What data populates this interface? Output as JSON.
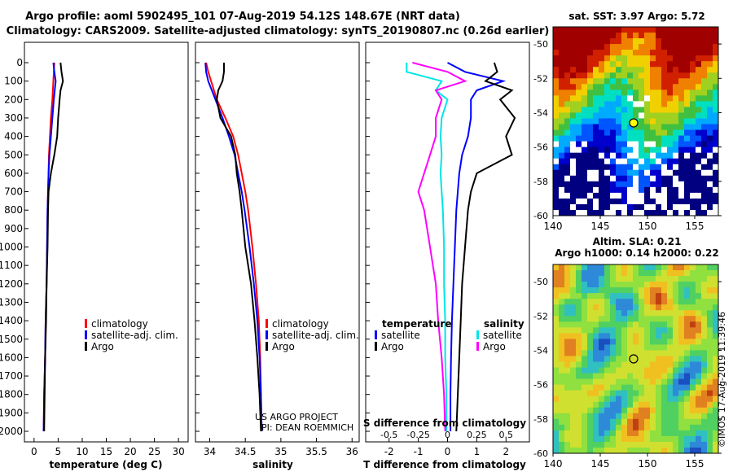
{
  "header": {
    "title_line1": "Argo profile: aoml 5902495_101 07-Aug-2019 54.12S 148.67E (NRT data)",
    "title_line2": "Climatology: CARS2009. Satellite-adjusted climatology: synTS_20190807.nc (0.26d earlier)"
  },
  "depth_ticks": [
    "0",
    "100",
    "200",
    "300",
    "400",
    "500",
    "600",
    "700",
    "800",
    "900",
    "1000",
    "1100",
    "1200",
    "1300",
    "1400",
    "1500",
    "1600",
    "1700",
    "1800",
    "1900",
    "2000"
  ],
  "credits": {
    "line1": "US ARGO PROJECT",
    "line2": "PI: DEAN ROEMMICH"
  },
  "imos_stamp": "©IMOS 17-Aug-2019 11:39:46",
  "colors": {
    "climatology": "#ff0000",
    "satellite": "#0000ff",
    "argo": "#000000",
    "satellite_salinity": "#00e5e5",
    "argo_salinity": "#ff00ff"
  },
  "panels": {
    "temperature": {
      "xlabel": "temperature (deg C)",
      "xticks": [
        "0",
        "5",
        "10",
        "15",
        "20",
        "25",
        "30"
      ],
      "legend": [
        "climatology",
        "satellite-adj. clim.",
        "Argo"
      ]
    },
    "salinity": {
      "xlabel": "salinity",
      "xticks": [
        "34",
        "34.5",
        "35",
        "35.5",
        "36"
      ],
      "legend": [
        "climatology",
        "satellite-adj. clim.",
        "Argo"
      ]
    },
    "difference": {
      "xlabel": "T difference from climatology",
      "xlabel2": "S difference from climatology",
      "xticks": [
        "-2",
        "-1",
        "0",
        "1",
        "2"
      ],
      "xticks_s": [
        "-0.5",
        "-0.25",
        "0",
        "0.25",
        "0.5"
      ],
      "legend_temperature_title": "temperature",
      "legend_salinity_title": "salinity",
      "legend_temperature": [
        "satellite",
        "Argo"
      ],
      "legend_salinity": [
        "satellite",
        "Argo"
      ]
    }
  },
  "maps": {
    "sst": {
      "title": "sat. SST: 3.97 Argo: 5.72",
      "lon_ticks": [
        "140",
        "145",
        "150",
        "155"
      ],
      "lat_ticks": [
        "-50",
        "-52",
        "-54",
        "-56",
        "-58",
        "-60"
      ]
    },
    "sla": {
      "title_line1": "Altim. SLA: 0.21",
      "title_line2": "Argo h1000: 0.14 h2000: 0.22",
      "lon_ticks": [
        "140",
        "145",
        "150",
        "155"
      ],
      "lat_ticks": [
        "-50",
        "-52",
        "-54",
        "-56",
        "-58",
        "-60"
      ]
    }
  },
  "chart_data": [
    {
      "type": "line",
      "title": "",
      "xlabel": "temperature (deg C)",
      "ylabel": "",
      "xlim": [
        -2,
        32
      ],
      "ylim": [
        2050,
        0
      ],
      "y": [
        0,
        50,
        100,
        150,
        200,
        300,
        400,
        500,
        600,
        700,
        800,
        1000,
        1200,
        1400,
        1600,
        1800,
        2000
      ],
      "series": [
        {
          "name": "climatology",
          "values": [
            4.2,
            4.1,
            4.0,
            3.9,
            3.8,
            3.5,
            3.3,
            3.1,
            3.0,
            2.9,
            2.8,
            2.7,
            2.6,
            2.4,
            2.3,
            2.1,
            2.0
          ]
        },
        {
          "name": "satellite-adj. clim.",
          "values": [
            4.0,
            4.2,
            4.5,
            4.3,
            4.1,
            3.8,
            3.5,
            3.2,
            3.0,
            2.9,
            2.8,
            2.7,
            2.6,
            2.4,
            2.3,
            2.1,
            2.0
          ]
        },
        {
          "name": "Argo",
          "values": [
            5.5,
            5.7,
            6.0,
            5.5,
            5.3,
            5.0,
            4.8,
            4.2,
            3.5,
            3.0,
            2.9,
            2.8,
            2.6,
            2.5,
            2.3,
            2.2,
            2.1
          ]
        }
      ]
    },
    {
      "type": "line",
      "title": "",
      "xlabel": "salinity",
      "ylabel": "",
      "xlim": [
        33.8,
        36.1
      ],
      "ylim": [
        2050,
        0
      ],
      "y": [
        0,
        50,
        100,
        150,
        200,
        300,
        400,
        500,
        600,
        700,
        800,
        1000,
        1200,
        1400,
        1600,
        1800,
        2000
      ],
      "series": [
        {
          "name": "climatology",
          "values": [
            33.95,
            33.98,
            34.02,
            34.06,
            34.1,
            34.22,
            34.33,
            34.4,
            34.45,
            34.5,
            34.54,
            34.6,
            34.65,
            34.69,
            34.71,
            34.72,
            34.73
          ]
        },
        {
          "name": "satellite-adj. clim.",
          "values": [
            33.94,
            33.95,
            33.98,
            34.03,
            34.08,
            34.18,
            34.27,
            34.35,
            34.4,
            34.45,
            34.49,
            34.56,
            34.62,
            34.67,
            34.7,
            34.72,
            34.73
          ]
        },
        {
          "name": "Argo",
          "values": [
            34.2,
            34.2,
            34.18,
            34.12,
            34.1,
            34.15,
            34.3,
            34.36,
            34.38,
            34.42,
            34.45,
            34.5,
            34.58,
            34.63,
            34.67,
            34.7,
            34.72
          ]
        }
      ]
    },
    {
      "type": "line",
      "title": "",
      "xlabel": "T difference from climatology",
      "ylabel": "",
      "xlim": [
        -2.8,
        2.8
      ],
      "ylim": [
        2050,
        0
      ],
      "y": [
        0,
        50,
        100,
        150,
        200,
        300,
        400,
        500,
        600,
        700,
        800,
        1000,
        1200,
        1400,
        1600,
        1800,
        2000
      ],
      "series": [
        {
          "name": "temperature satellite",
          "values": [
            0.0,
            0.6,
            1.9,
            1.0,
            0.8,
            0.8,
            0.7,
            0.5,
            0.4,
            0.35,
            0.3,
            0.25,
            0.2,
            0.15,
            0.12,
            0.1,
            0.1
          ]
        },
        {
          "name": "temperature Argo",
          "values": [
            1.6,
            1.7,
            1.3,
            2.2,
            1.8,
            2.3,
            2.0,
            2.2,
            1.0,
            0.8,
            0.7,
            0.6,
            0.5,
            0.45,
            0.4,
            0.35,
            0.3
          ]
        },
        {
          "name": "salinity satellite",
          "values": [
            -0.35,
            -0.35,
            -0.05,
            -0.1,
            0.0,
            -0.05,
            -0.06,
            -0.05,
            -0.06,
            -0.05,
            -0.04,
            -0.03,
            -0.03,
            -0.02,
            -0.02,
            -0.01,
            -0.01
          ]
        },
        {
          "name": "salinity Argo",
          "values": [
            -0.3,
            0.0,
            0.15,
            -0.1,
            -0.05,
            -0.1,
            -0.1,
            -0.15,
            -0.2,
            -0.25,
            -0.2,
            -0.15,
            -0.1,
            -0.08,
            -0.05,
            -0.03,
            -0.02
          ]
        }
      ]
    }
  ]
}
